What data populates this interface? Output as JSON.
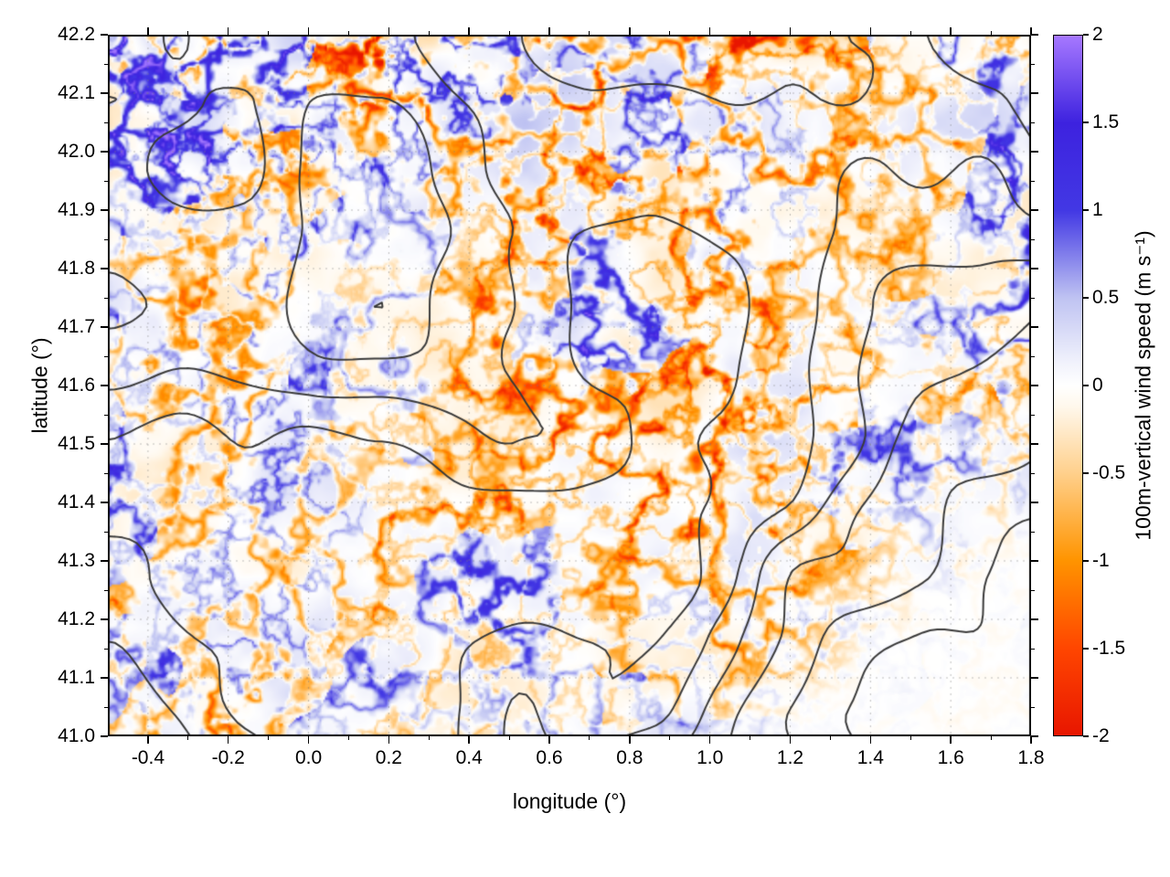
{
  "chart_data": {
    "type": "heatmap",
    "title": "",
    "xlabel": "longitude (°)",
    "ylabel": "latitude (°)",
    "xlim": [
      -0.5,
      1.8
    ],
    "ylim": [
      41.0,
      42.2
    ],
    "xticks": [
      -0.4,
      -0.2,
      0.0,
      0.2,
      0.4,
      0.6,
      0.8,
      1.0,
      1.2,
      1.4,
      1.6,
      1.8
    ],
    "xtick_labels": [
      "-0.4",
      "-0.2",
      "0.0",
      "0.2",
      "0.4",
      "0.6",
      "0.8",
      "1.0",
      "1.2",
      "1.4",
      "1.6",
      "1.8"
    ],
    "yticks": [
      41.0,
      41.1,
      41.2,
      41.3,
      41.4,
      41.5,
      41.6,
      41.7,
      41.8,
      41.9,
      42.0,
      42.1,
      42.2
    ],
    "ytick_labels": [
      "41.0",
      "41.1",
      "41.2",
      "41.3",
      "41.4",
      "41.5",
      "41.6",
      "41.7",
      "41.8",
      "41.9",
      "42.0",
      "42.1",
      "42.2"
    ],
    "grid": "faint dotted lines at major ticks",
    "background": "#ffffff",
    "contour_overlay": {
      "description": "terrain elevation contour lines overlaid on the wind field",
      "color": "#3a3a3a",
      "line_width": 2
    },
    "colorbar": {
      "label": "100m-vertical wind speed (m s⁻¹)",
      "range": [
        -2,
        2
      ],
      "ticks": [
        2,
        1.5,
        1,
        0.5,
        0,
        -0.5,
        -1,
        -1.5,
        -2
      ],
      "tick_labels": [
        "2",
        "1.5",
        "1",
        "0.5",
        "0",
        "-0.5",
        "-1",
        "-1.5",
        "-2"
      ],
      "position": "right",
      "colormap_stops": [
        {
          "value": -2.0,
          "color": "#e81600"
        },
        {
          "value": -1.5,
          "color": "#ff4600"
        },
        {
          "value": -1.0,
          "color": "#ff9400"
        },
        {
          "value": -0.5,
          "color": "#ffd08c"
        },
        {
          "value": -0.12,
          "color": "#fff8ec"
        },
        {
          "value": 0.0,
          "color": "#ffffff"
        },
        {
          "value": 0.12,
          "color": "#f2f3fc"
        },
        {
          "value": 0.5,
          "color": "#bfc3f2"
        },
        {
          "value": 1.0,
          "color": "#4238e4"
        },
        {
          "value": 1.5,
          "color": "#3d22df"
        },
        {
          "value": 2.0,
          "color": "#a678ff"
        }
      ]
    },
    "field_description": "Turbulent 100 m vertical wind speed field over complex terrain: thin filamentary updraft streaks (blue/purple, positive) and downdraft streaks (orange/red, negative); values mostly within ±1 m/s with localized streaks reaching ±2 m/s near the top (lat 42.0–42.2) and around lat 41.25–41.4; smooth near-zero (white) region in the lower-right corner."
  }
}
